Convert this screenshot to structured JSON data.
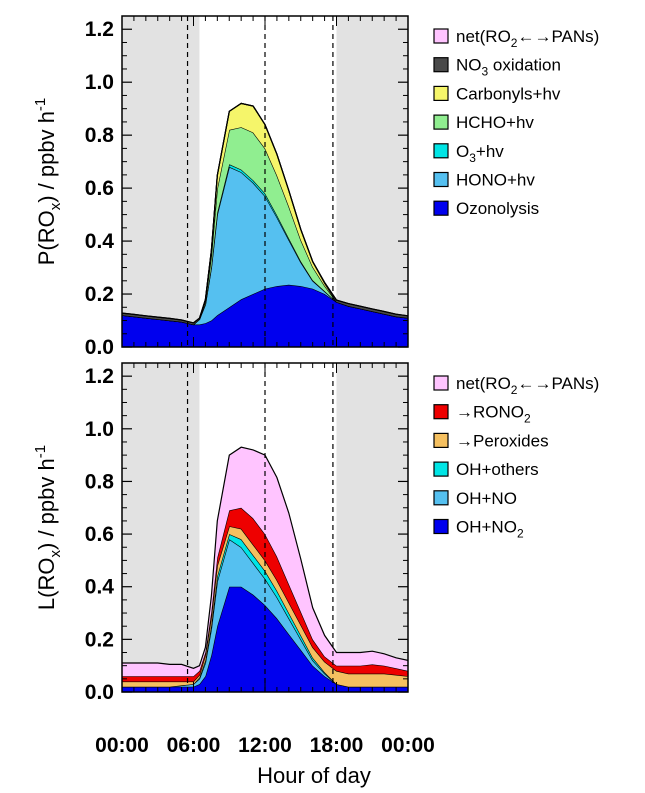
{
  "figure": {
    "xlabel": "Hour of day",
    "xtick_labels": [
      "00:00",
      "06:00",
      "12:00",
      "18:00",
      "00:00"
    ]
  },
  "chart_data": [
    {
      "type": "area",
      "stacked": true,
      "ylabel_main": "P(RO",
      "ylabel_sub": "x",
      "ylabel_tail": ") / ppbv h",
      "ylabel_sup": "-1",
      "ylim": [
        0,
        1.25
      ],
      "yticks": [
        "0.0",
        "0.2",
        "0.4",
        "0.6",
        "0.8",
        "1.0",
        "1.2"
      ],
      "xlim": [
        0,
        24
      ],
      "x": [
        0,
        1,
        2,
        3,
        4,
        5,
        6,
        6.5,
        7,
        7.5,
        8,
        9,
        10,
        11,
        12,
        13,
        14,
        15,
        16,
        17,
        18,
        19,
        20,
        21,
        22,
        23,
        24
      ],
      "series": [
        {
          "name": "Ozonolysis",
          "color": "#0000ee",
          "values": [
            0.12,
            0.115,
            0.11,
            0.105,
            0.1,
            0.095,
            0.085,
            0.085,
            0.09,
            0.1,
            0.12,
            0.15,
            0.18,
            0.2,
            0.22,
            0.23,
            0.235,
            0.23,
            0.22,
            0.2,
            0.17,
            0.155,
            0.145,
            0.135,
            0.125,
            0.115,
            0.11
          ]
        },
        {
          "name": "HONO+hv",
          "color": "#55c0f0",
          "values": [
            0,
            0,
            0,
            0,
            0,
            0,
            0,
            0.02,
            0.07,
            0.2,
            0.38,
            0.53,
            0.48,
            0.42,
            0.35,
            0.26,
            0.17,
            0.09,
            0.03,
            0.01,
            0,
            0,
            0,
            0,
            0,
            0,
            0
          ]
        },
        {
          "name": "O3+hv",
          "color": "#00e5e5",
          "values": [
            0,
            0,
            0,
            0,
            0,
            0,
            0,
            0,
            0.002,
            0.004,
            0.008,
            0.01,
            0.01,
            0.01,
            0.01,
            0.008,
            0.006,
            0.004,
            0.002,
            0.001,
            0,
            0,
            0,
            0,
            0,
            0,
            0
          ]
        },
        {
          "name": "HCHO+hv",
          "color": "#90ee90",
          "values": [
            0,
            0,
            0,
            0,
            0,
            0,
            0,
            0,
            0.01,
            0.04,
            0.09,
            0.13,
            0.16,
            0.18,
            0.17,
            0.15,
            0.12,
            0.08,
            0.05,
            0.02,
            0,
            0,
            0,
            0,
            0,
            0,
            0
          ]
        },
        {
          "name": "Carbonyls+hv",
          "color": "#f5f56a",
          "values": [
            0,
            0,
            0,
            0,
            0,
            0,
            0,
            0,
            0.005,
            0.02,
            0.05,
            0.07,
            0.09,
            0.1,
            0.09,
            0.08,
            0.06,
            0.04,
            0.02,
            0.01,
            0,
            0,
            0,
            0,
            0,
            0,
            0
          ]
        },
        {
          "name": "NO3 oxidation",
          "color": "#4a4a4a",
          "values": [
            0.008,
            0.008,
            0.008,
            0.008,
            0.008,
            0.007,
            0.006,
            0.004,
            0.002,
            0.001,
            0,
            0,
            0,
            0,
            0,
            0,
            0,
            0,
            0.001,
            0.003,
            0.007,
            0.009,
            0.009,
            0.009,
            0.009,
            0.009,
            0.008
          ]
        },
        {
          "name": "net(RO2<->PANs)",
          "color": "#ffc4ff",
          "values": [
            0,
            0,
            0,
            0,
            0,
            0,
            0,
            0,
            0,
            0,
            0,
            0,
            0,
            0,
            0,
            0,
            0,
            0,
            0,
            0,
            0,
            0,
            0,
            0,
            0,
            0,
            0
          ]
        }
      ]
    },
    {
      "type": "area",
      "stacked": true,
      "ylabel_main": "L(RO",
      "ylabel_sub": "x",
      "ylabel_tail": ") / ppbv h",
      "ylabel_sup": "-1",
      "ylim": [
        0,
        1.25
      ],
      "yticks": [
        "0.0",
        "0.2",
        "0.4",
        "0.6",
        "0.8",
        "1.0",
        "1.2"
      ],
      "xlim": [
        0,
        24
      ],
      "x": [
        0,
        1,
        2,
        3,
        4,
        5,
        6,
        6.5,
        7,
        7.5,
        8,
        9,
        10,
        11,
        12,
        13,
        14,
        15,
        16,
        17,
        18,
        19,
        20,
        21,
        22,
        23,
        24
      ],
      "series": [
        {
          "name": "OH+NO2",
          "color": "#0000ee",
          "values": [
            0.02,
            0.02,
            0.02,
            0.02,
            0.02,
            0.02,
            0.02,
            0.03,
            0.06,
            0.14,
            0.25,
            0.4,
            0.4,
            0.37,
            0.33,
            0.28,
            0.22,
            0.16,
            0.1,
            0.06,
            0.03,
            0.02,
            0.02,
            0.02,
            0.02,
            0.02,
            0.02
          ]
        },
        {
          "name": "OH+NO",
          "color": "#55c0f0",
          "values": [
            0,
            0,
            0,
            0,
            0,
            0.005,
            0.01,
            0.02,
            0.05,
            0.1,
            0.17,
            0.18,
            0.15,
            0.12,
            0.1,
            0.08,
            0.06,
            0.04,
            0.02,
            0.01,
            0,
            0,
            0,
            0,
            0,
            0,
            0
          ]
        },
        {
          "name": "OH+others",
          "color": "#00e5e5",
          "values": [
            0,
            0,
            0,
            0,
            0,
            0,
            0,
            0.005,
            0.01,
            0.015,
            0.02,
            0.02,
            0.03,
            0.03,
            0.03,
            0.025,
            0.02,
            0.015,
            0.01,
            0.005,
            0,
            0,
            0,
            0,
            0,
            0,
            0
          ]
        },
        {
          "name": "->Peroxides",
          "color": "#f5c060",
          "values": [
            0.02,
            0.02,
            0.02,
            0.02,
            0.02,
            0.015,
            0.01,
            0.01,
            0.02,
            0.03,
            0.04,
            0.03,
            0.04,
            0.04,
            0.04,
            0.04,
            0.04,
            0.04,
            0.04,
            0.04,
            0.05,
            0.05,
            0.05,
            0.05,
            0.05,
            0.045,
            0.04
          ]
        },
        {
          "name": "->RONO2",
          "color": "#ee0000",
          "values": [
            0.02,
            0.02,
            0.02,
            0.02,
            0.02,
            0.02,
            0.02,
            0.015,
            0.01,
            0.02,
            0.03,
            0.06,
            0.08,
            0.1,
            0.1,
            0.09,
            0.07,
            0.05,
            0.03,
            0.02,
            0.02,
            0.03,
            0.03,
            0.035,
            0.03,
            0.025,
            0.02
          ]
        },
        {
          "name": "net(RO2<->PANs)",
          "color": "#ffc4ff",
          "values": [
            0.05,
            0.05,
            0.05,
            0.05,
            0.045,
            0.045,
            0.03,
            0.02,
            0.02,
            0.06,
            0.14,
            0.21,
            0.23,
            0.26,
            0.3,
            0.3,
            0.27,
            0.2,
            0.12,
            0.08,
            0.05,
            0.05,
            0.05,
            0.05,
            0.045,
            0.04,
            0.04
          ]
        }
      ]
    }
  ],
  "legends": [
    [
      {
        "color": "#ffc4ff",
        "label": "net(RO",
        "sub": "2",
        "rest": "←→PANs)"
      },
      {
        "color": "#4a4a4a",
        "label": "NO",
        "sub": "3",
        "rest": " oxidation"
      },
      {
        "color": "#f5f56a",
        "label": "Carbonyls+hv",
        "sub": "",
        "rest": ""
      },
      {
        "color": "#90ee90",
        "label": "HCHO+hv",
        "sub": "",
        "rest": ""
      },
      {
        "color": "#00e5e5",
        "label": "O",
        "sub": "3",
        "rest": "+hv"
      },
      {
        "color": "#55c0f0",
        "label": "HONO+hv",
        "sub": "",
        "rest": ""
      },
      {
        "color": "#0000ee",
        "label": "Ozonolysis",
        "sub": "",
        "rest": ""
      }
    ],
    [
      {
        "color": "#ffc4ff",
        "label": "net(RO",
        "sub": "2",
        "rest": "←→PANs)"
      },
      {
        "color": "#ee0000",
        "label": "→RONO",
        "sub": "2",
        "rest": ""
      },
      {
        "color": "#f5c060",
        "label": "→Peroxides",
        "sub": "",
        "rest": ""
      },
      {
        "color": "#00e5e5",
        "label": "OH+others",
        "sub": "",
        "rest": ""
      },
      {
        "color": "#55c0f0",
        "label": "OH+NO",
        "sub": "",
        "rest": ""
      },
      {
        "color": "#0000ee",
        "label": "OH+NO",
        "sub": "2",
        "rest": ""
      }
    ]
  ],
  "shading": {
    "night_color": "#e2e2e2",
    "night_ranges": [
      [
        0,
        6.5
      ],
      [
        18,
        24
      ]
    ],
    "dashed_hours": [
      5.5,
      12,
      17.7
    ]
  }
}
